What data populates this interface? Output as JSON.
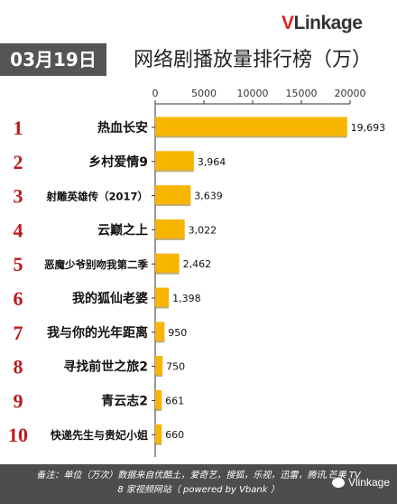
{
  "brand": {
    "logo_v": "V",
    "logo_rest": "Linkage"
  },
  "header": {
    "date": "03月19日",
    "title": "网络剧播放量排行榜（万）"
  },
  "colors": {
    "bar": "#f7b500",
    "rank": "#c0191c",
    "brand_red": "#e0231b",
    "footer_bg": "#4d4d4d"
  },
  "chart_data": {
    "type": "bar",
    "orientation": "horizontal",
    "title": "网络剧播放量排行榜（万）",
    "xlim": [
      0,
      20000
    ],
    "x_ticks": [
      "0",
      "5000",
      "10000",
      "15000",
      "20000"
    ],
    "grid": false,
    "categories": [
      "热血长安",
      "乡村爱情9",
      "射雕英雄传（2017）",
      "云巅之上",
      "恶魔少爷别吻我第二季",
      "我的狐仙老婆",
      "我与你的光年距离",
      "寻找前世之旅2",
      "青云志2",
      "快递先生与贵妃小姐"
    ],
    "ranks": [
      "1",
      "2",
      "3",
      "4",
      "5",
      "6",
      "7",
      "8",
      "9",
      "10"
    ],
    "values": [
      19693,
      3964,
      3639,
      3022,
      2462,
      1398,
      950,
      750,
      661,
      660
    ],
    "value_labels": [
      "19,693",
      "3,964",
      "3,639",
      "3,022",
      "2,462",
      "1,398",
      "950",
      "750",
      "661",
      "660"
    ]
  },
  "footer": {
    "line1": "备注：单位（万次）数据来自优酷土，爱奇艺，搜狐，乐视，迅雷，腾讯,芒果 TV",
    "line2": "8 家视频网站（ powered by Vbank ）",
    "wechat": "Vlinkage"
  }
}
